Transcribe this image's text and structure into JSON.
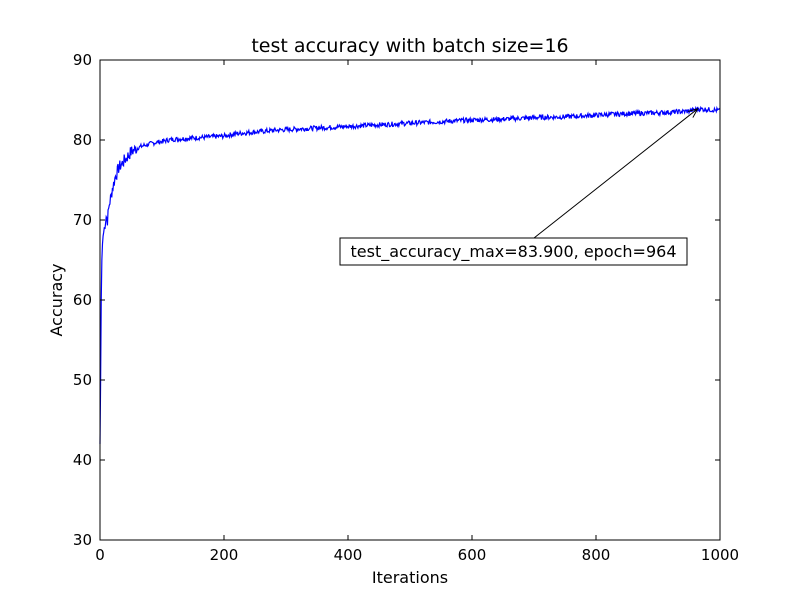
{
  "chart_data": {
    "type": "line",
    "title": "test accuracy with batch size=16",
    "xlabel": "Iterations",
    "ylabel": "Accuracy",
    "xlim": [
      0,
      1000
    ],
    "ylim": [
      30,
      90
    ],
    "xticks": [
      0,
      200,
      400,
      600,
      800,
      1000
    ],
    "yticks": [
      30,
      40,
      50,
      60,
      70,
      80,
      90
    ],
    "grid": false,
    "series": [
      {
        "color": "#0000ff",
        "x": [
          0,
          1,
          2,
          3,
          4,
          5,
          6,
          8,
          10,
          12,
          15,
          18,
          20,
          22,
          25,
          28,
          30,
          35,
          40,
          45,
          50,
          60,
          70,
          80,
          90,
          100,
          110,
          120,
          140,
          160,
          180,
          200,
          220,
          250,
          280,
          300,
          350,
          400,
          450,
          500,
          550,
          600,
          650,
          700,
          750,
          800,
          850,
          900,
          950,
          964,
          1000
        ],
        "y": [
          42,
          50,
          60,
          65,
          67,
          68,
          68.5,
          69.5,
          70.5,
          70,
          72,
          73,
          74,
          74.5,
          75.5,
          76,
          76.5,
          77,
          77.5,
          78,
          78.5,
          79,
          79.3,
          79.5,
          79.7,
          79.8,
          80,
          80.1,
          80.2,
          80.3,
          80.4,
          80.5,
          80.8,
          81,
          81.2,
          81.3,
          81.5,
          81.7,
          81.9,
          82.1,
          82.3,
          82.5,
          82.6,
          82.8,
          82.9,
          83.1,
          83.3,
          83.4,
          83.6,
          83.9,
          83.7
        ]
      }
    ],
    "annotation": {
      "text": "test_accuracy_max=83.900, epoch=964",
      "point": [
        964,
        83.9
      ]
    }
  }
}
